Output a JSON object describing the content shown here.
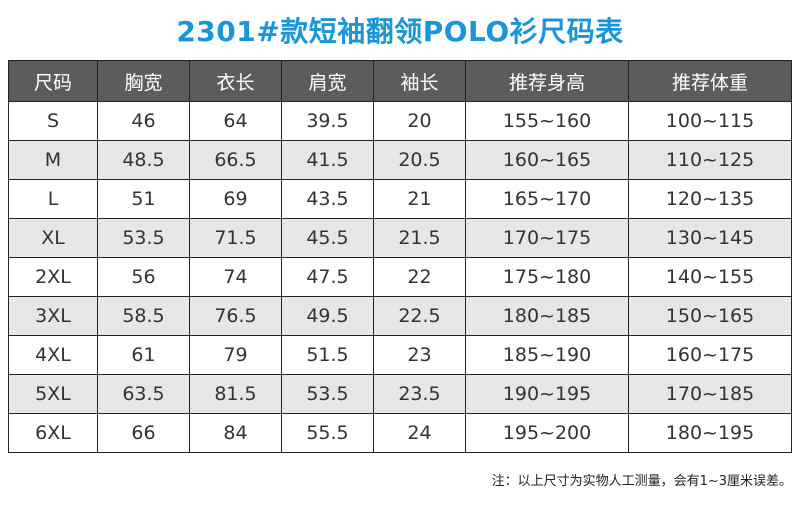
{
  "title": "2301#款短袖翻领POLO衫尺码表",
  "table": {
    "headers": [
      "尺码",
      "胸宽",
      "衣长",
      "肩宽",
      "袖长",
      "推荐身高",
      "推荐体重"
    ],
    "rows": [
      [
        "S",
        "46",
        "64",
        "39.5",
        "20",
        "155~160",
        "100~115"
      ],
      [
        "M",
        "48.5",
        "66.5",
        "41.5",
        "20.5",
        "160~165",
        "110~125"
      ],
      [
        "L",
        "51",
        "69",
        "43.5",
        "21",
        "165~170",
        "120~135"
      ],
      [
        "XL",
        "53.5",
        "71.5",
        "45.5",
        "21.5",
        "170~175",
        "130~145"
      ],
      [
        "2XL",
        "56",
        "74",
        "47.5",
        "22",
        "175~180",
        "140~155"
      ],
      [
        "3XL",
        "58.5",
        "76.5",
        "49.5",
        "22.5",
        "180~185",
        "150~165"
      ],
      [
        "4XL",
        "61",
        "79",
        "51.5",
        "23",
        "185~190",
        "160~175"
      ],
      [
        "5XL",
        "63.5",
        "81.5",
        "53.5",
        "23.5",
        "190~195",
        "170~185"
      ],
      [
        "6XL",
        "66",
        "84",
        "55.5",
        "24",
        "195~200",
        "180~195"
      ]
    ]
  },
  "note": "注：以上尺寸为实物人工测量，会有1~3厘米误差。",
  "colors": {
    "title": "#1a95d6",
    "header_bg": "#5c5c5c",
    "row_alt_bg": "#e6e6e6"
  }
}
